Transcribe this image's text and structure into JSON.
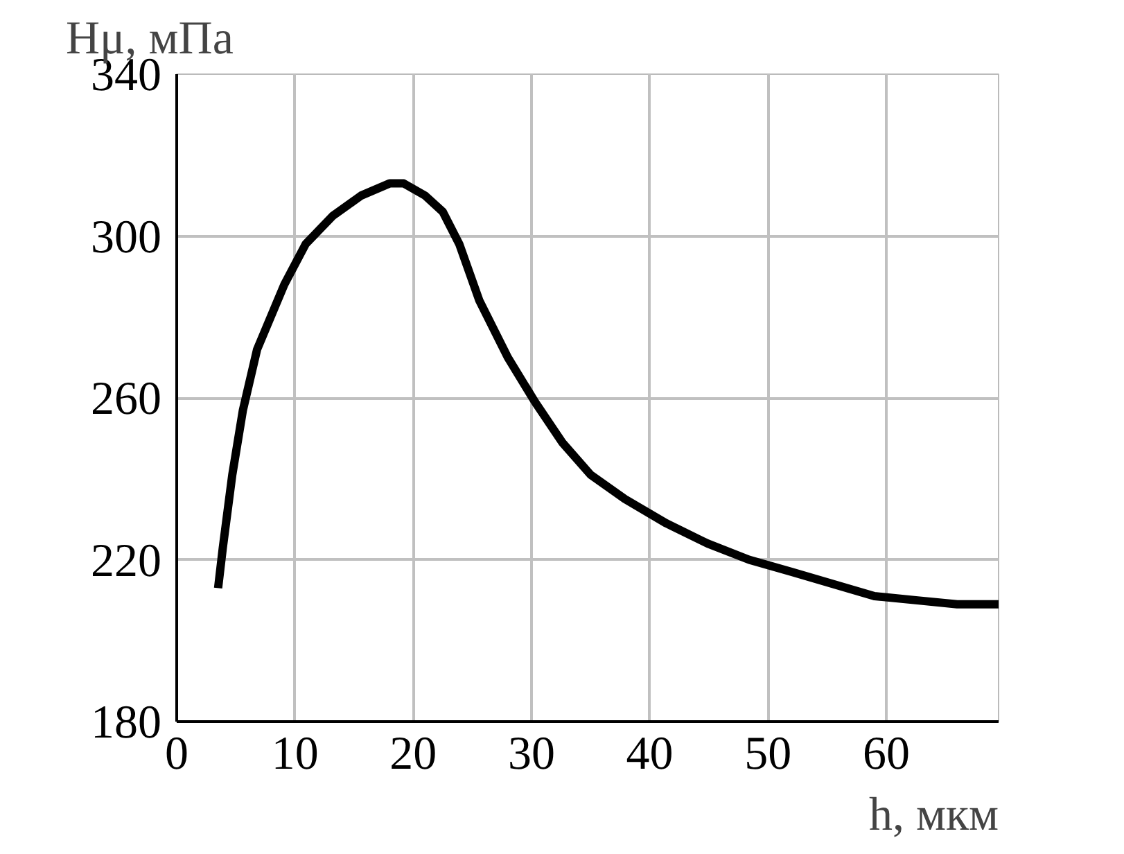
{
  "chart_data": {
    "type": "line",
    "ylabel": "Hμ, мПа",
    "xlabel": "h, мкм",
    "x": [
      3.5,
      3.9,
      4.7,
      5.6,
      6.8,
      9.1,
      10.9,
      13.2,
      15.6,
      18,
      19.2,
      21,
      22.5,
      23.9,
      25.6,
      28,
      30.3,
      32.6,
      35,
      37.9,
      41.4,
      44.9,
      48.4,
      52,
      55.5,
      59,
      62.5,
      66,
      69.5
    ],
    "series": [
      {
        "color": "#000000",
        "values": [
          213,
          223,
          241,
          257,
          272,
          288,
          298,
          305,
          310,
          313,
          313,
          310,
          306,
          298,
          284,
          270,
          259,
          249,
          241,
          235,
          229,
          224,
          220,
          217,
          214,
          211,
          210,
          209,
          209
        ]
      }
    ],
    "xlim": [
      0,
      69.5
    ],
    "ylim": [
      180,
      340
    ],
    "xticks": [
      0,
      10,
      20,
      30,
      40,
      50,
      60
    ],
    "yticks": [
      180,
      220,
      260,
      300,
      340
    ],
    "grid": true,
    "marker": "none",
    "line_style": "solid"
  }
}
